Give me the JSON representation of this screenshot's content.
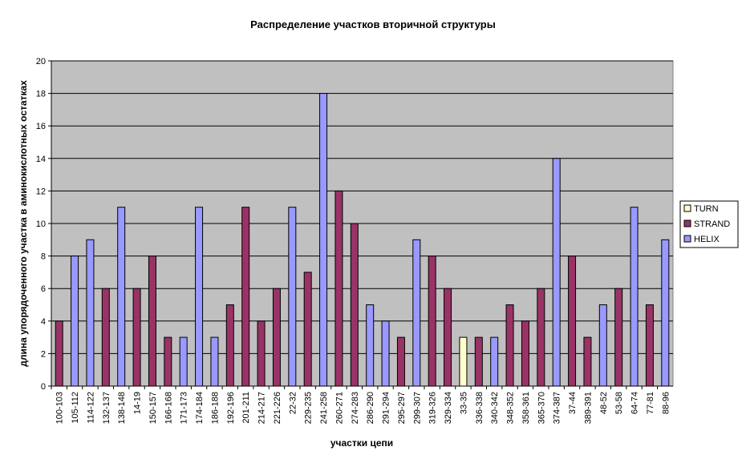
{
  "chart_data": {
    "type": "bar",
    "title": "Распределение участков вторичной структуры",
    "xlabel": "участки цепи",
    "ylabel": "длина упорядоченного участка в аминокислотных остатках",
    "ylim": [
      0,
      20
    ],
    "yticks": [
      0,
      2,
      4,
      6,
      8,
      10,
      12,
      14,
      16,
      18,
      20
    ],
    "grid": true,
    "legend_position": "right",
    "categories": [
      "100-103",
      "105-112",
      "114-122",
      "132-137",
      "138-148",
      "14-19",
      "150-157",
      "166-168",
      "171-173",
      "174-184",
      "186-188",
      "192-196",
      "201-211",
      "214-217",
      "221-226",
      "22-32",
      "229-235",
      "241-258",
      "260-271",
      "274-283",
      "286-290",
      "291-294",
      "295-297",
      "299-307",
      "319-326",
      "329-334",
      "33-35",
      "336-338",
      "340-342",
      "348-352",
      "358-361",
      "365-370",
      "374-387",
      "37-44",
      "389-391",
      "48-52",
      "53-58",
      "64-74",
      "77-81",
      "88-96"
    ],
    "series": [
      {
        "name": "TURN",
        "color": "#ffffcc",
        "values": [
          0,
          0,
          0,
          0,
          0,
          0,
          0,
          0,
          0,
          0,
          0,
          0,
          0,
          0,
          0,
          0,
          0,
          0,
          0,
          0,
          0,
          0,
          0,
          0,
          0,
          0,
          3,
          0,
          0,
          0,
          0,
          0,
          0,
          0,
          0,
          0,
          0,
          0,
          0,
          0
        ]
      },
      {
        "name": "STRAND",
        "color": "#993366",
        "values": [
          4,
          0,
          0,
          6,
          0,
          6,
          8,
          3,
          0,
          0,
          0,
          5,
          11,
          4,
          6,
          0,
          7,
          0,
          12,
          10,
          0,
          0,
          3,
          0,
          8,
          6,
          0,
          3,
          0,
          5,
          4,
          6,
          0,
          8,
          3,
          0,
          6,
          0,
          5,
          0
        ]
      },
      {
        "name": "HELIX",
        "color": "#9999ff",
        "values": [
          0,
          8,
          9,
          0,
          11,
          0,
          0,
          0,
          3,
          11,
          3,
          0,
          0,
          0,
          0,
          11,
          0,
          18,
          0,
          0,
          5,
          4,
          0,
          9,
          0,
          0,
          0,
          0,
          3,
          0,
          0,
          0,
          14,
          0,
          0,
          5,
          0,
          11,
          0,
          9
        ]
      }
    ],
    "colors": {
      "plot_background": "#c0c0c0",
      "gridline": "#000000",
      "bar_outline": "#000000"
    }
  }
}
